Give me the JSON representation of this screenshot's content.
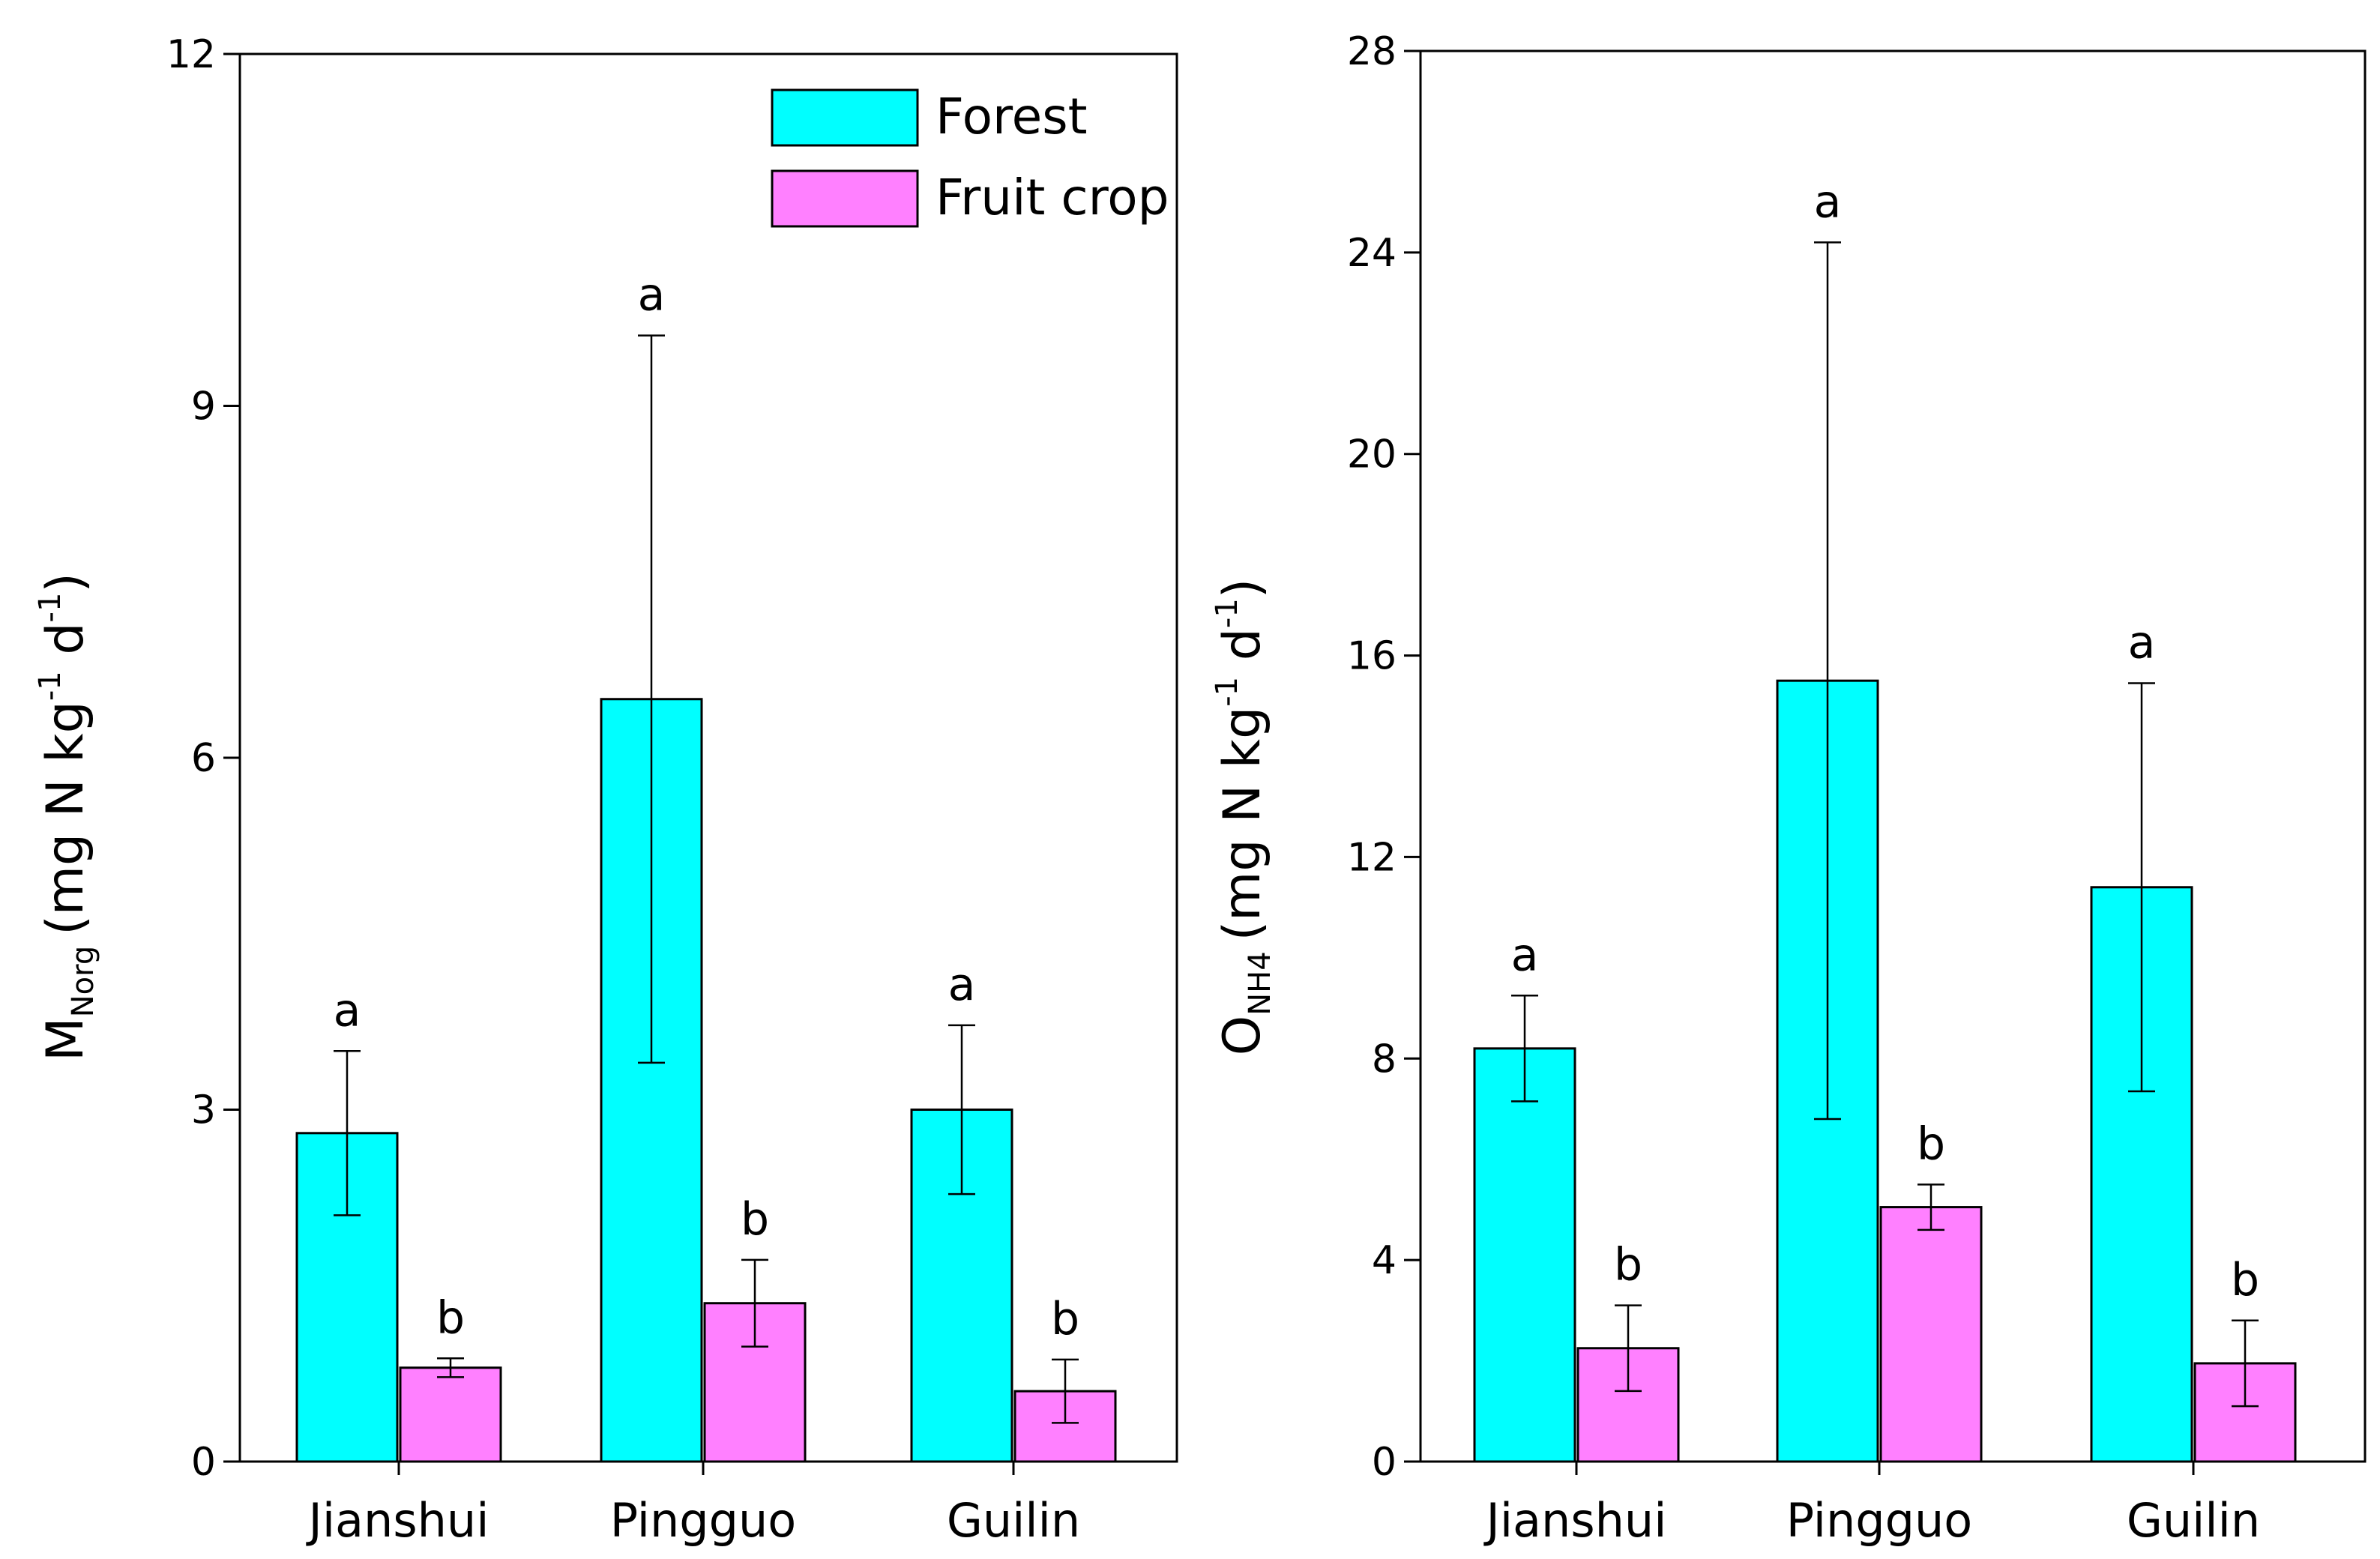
{
  "chart_data": [
    {
      "type": "bar",
      "categories": [
        "Jianshui",
        "Pingguo",
        "Guilin"
      ],
      "ylabel": {
        "main": "M",
        "sub": "Norg",
        "unit_open": "(mg N kg",
        "sup1": "-1",
        "d": " d",
        "sup2": "-1",
        "close": ")"
      },
      "ylim": [
        0,
        12
      ],
      "yticks": [
        0,
        3,
        6,
        9,
        12
      ],
      "series": [
        {
          "name": "Forest",
          "color": "#00FFFF",
          "values": [
            2.8,
            6.5,
            3.0
          ],
          "errors": [
            0.7,
            3.1,
            0.72
          ],
          "letters": [
            "a",
            "a",
            "a"
          ]
        },
        {
          "name": "Fruit crop",
          "color": "#FF80FF",
          "values": [
            0.8,
            1.35,
            0.6
          ],
          "errors": [
            0.08,
            0.37,
            0.27
          ],
          "letters": [
            "b",
            "b",
            "b"
          ]
        }
      ],
      "legend": {
        "position": "top-right"
      }
    },
    {
      "type": "bar",
      "categories": [
        "Jianshui",
        "Pingguo",
        "Guilin"
      ],
      "ylabel": {
        "main": "O",
        "sub": "NH4",
        "unit_open": "(mg N kg",
        "sup1": "-1",
        "d": " d",
        "sup2": "-1",
        "close": ")"
      },
      "ylim": [
        0,
        28
      ],
      "yticks": [
        0,
        4,
        8,
        12,
        16,
        20,
        24,
        28
      ],
      "series": [
        {
          "name": "Forest",
          "color": "#00FFFF",
          "values": [
            8.2,
            15.5,
            11.4
          ],
          "errors": [
            1.05,
            8.7,
            4.05
          ],
          "letters": [
            "a",
            "a",
            "a"
          ]
        },
        {
          "name": "Fruit crop",
          "color": "#FF80FF",
          "values": [
            2.25,
            5.05,
            1.95
          ],
          "errors": [
            0.85,
            0.45,
            0.85
          ],
          "letters": [
            "b",
            "b",
            "b"
          ]
        }
      ]
    }
  ]
}
